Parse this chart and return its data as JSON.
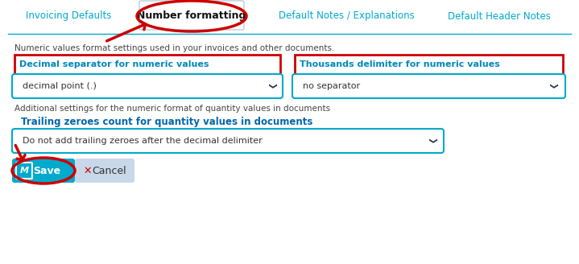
{
  "bg_color": "#ffffff",
  "tab_labels": [
    "Invoicing Defaults",
    "Number formatting",
    "Default Notes / Explanations",
    "Default Header Notes"
  ],
  "tab_color": "#00aacc",
  "active_tab": "Number formatting",
  "active_tab_color": "#111111",
  "desc_text": "Numeric values format settings used in your invoices and other documents.",
  "desc_color": "#444444",
  "label1": "Decimal separator for numeric values",
  "label2": "Thousands delimiter for numeric values",
  "dropdown1_text": "decimal point (.)",
  "dropdown2_text": "no separator",
  "dropdown_text_color": "#333333",
  "dropdown_border_color": "#00aacc",
  "label_box_color": "#cc0000",
  "label_text_color": "#0088bb",
  "additional_text": "Additional settings for the numeric format of quantity values in documents",
  "trailing_label": "Trailing zeroes count for quantity values in documents",
  "trailing_label_color": "#0066aa",
  "trailing_dropdown_text": "Do not add trailing zeroes after the decimal delimiter",
  "save_bg": "#00aacc",
  "save_text": "Save",
  "cancel_bg": "#c8d8e8",
  "cancel_text": "Cancel",
  "arrow_color": "#cc0000",
  "tab_line_color": "#00aacc",
  "chevron_color": "#223355"
}
